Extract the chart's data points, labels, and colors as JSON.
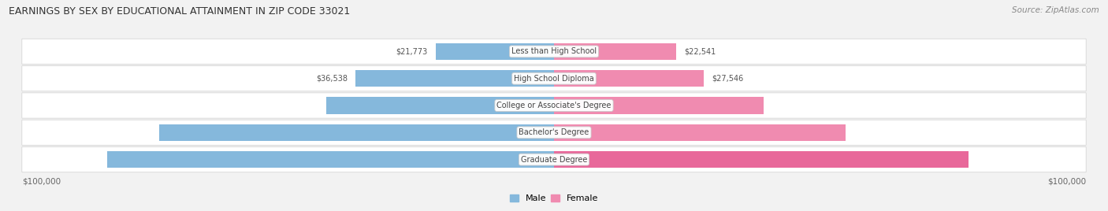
{
  "title": "EARNINGS BY SEX BY EDUCATIONAL ATTAINMENT IN ZIP CODE 33021",
  "source": "Source: ZipAtlas.com",
  "categories": [
    "Less than High School",
    "High School Diploma",
    "College or Associate's Degree",
    "Bachelor's Degree",
    "Graduate Degree"
  ],
  "male_values": [
    21773,
    36538,
    41995,
    72682,
    82242
  ],
  "female_values": [
    22541,
    27546,
    38617,
    53750,
    76373
  ],
  "male_color": "#85B8DC",
  "female_color": "#F08BB0",
  "female_color_dark": "#E8689A",
  "max_value": 100000,
  "bar_height": 0.62,
  "background_color": "#f2f2f2",
  "row_light": "#f8f8f8",
  "row_dark": "#ececec",
  "xlabel_left": "$100,000",
  "xlabel_right": "$100,000"
}
